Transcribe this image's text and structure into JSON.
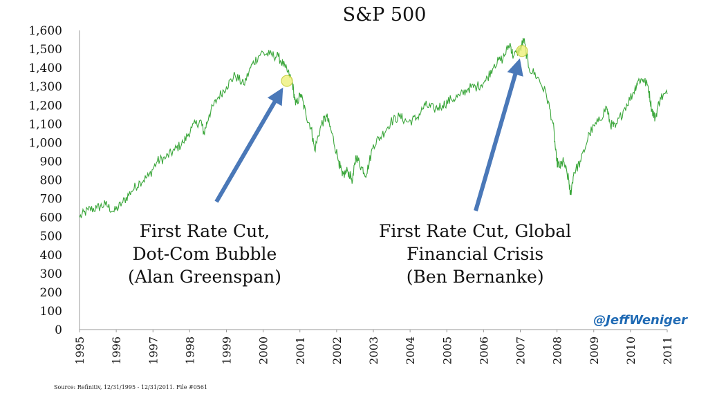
{
  "chart_data": {
    "type": "line",
    "title": "S&P 500",
    "xlabel": "",
    "ylabel": "",
    "xlim": [
      1995.0,
      2011.25
    ],
    "ylim": [
      0,
      1600
    ],
    "y_ticks": [
      0,
      100,
      200,
      300,
      400,
      500,
      600,
      700,
      800,
      900,
      1000,
      1100,
      1200,
      1300,
      1400,
      1500,
      1600
    ],
    "y_tick_labels": [
      "0",
      "100",
      "200",
      "300",
      "400",
      "500",
      "600",
      "700",
      "800",
      "900",
      "1,000",
      "1,100",
      "1,200",
      "1,300",
      "1,400",
      "1,500",
      "1,600"
    ],
    "x_tick_labels": [
      "1995",
      "1996",
      "1997",
      "1998",
      "1999",
      "2000",
      "2001",
      "2002",
      "2003",
      "2004",
      "2005",
      "2006",
      "2007",
      "2008",
      "2009",
      "2010",
      "2011"
    ],
    "grid": false,
    "line_color": "#3aa63a",
    "series": [
      {
        "values": [
          [
            1995.0,
            600
          ],
          [
            1995.25,
            640
          ],
          [
            1995.5,
            650
          ],
          [
            1995.75,
            670
          ],
          [
            1996.0,
            630
          ],
          [
            1996.25,
            680
          ],
          [
            1996.5,
            740
          ],
          [
            1996.75,
            790
          ],
          [
            1997.0,
            820
          ],
          [
            1997.25,
            900
          ],
          [
            1997.5,
            920
          ],
          [
            1997.75,
            960
          ],
          [
            1998.0,
            1000
          ],
          [
            1998.25,
            1080
          ],
          [
            1998.5,
            1120
          ],
          [
            1998.6,
            1050
          ],
          [
            1998.75,
            1150
          ],
          [
            1999.0,
            1240
          ],
          [
            1999.25,
            1300
          ],
          [
            1999.5,
            1360
          ],
          [
            1999.75,
            1310
          ],
          [
            2000.0,
            1420
          ],
          [
            2000.25,
            1480
          ],
          [
            2000.5,
            1470
          ],
          [
            2000.75,
            1460
          ],
          [
            2000.95,
            1400
          ],
          [
            2001.15,
            1330
          ],
          [
            2001.25,
            1200
          ],
          [
            2001.4,
            1260
          ],
          [
            2001.55,
            1150
          ],
          [
            2001.7,
            1080
          ],
          [
            2001.8,
            960
          ],
          [
            2002.0,
            1100
          ],
          [
            2002.15,
            1140
          ],
          [
            2002.3,
            1050
          ],
          [
            2002.5,
            900
          ],
          [
            2002.6,
            820
          ],
          [
            2002.75,
            850
          ],
          [
            2002.9,
            800
          ],
          [
            2003.0,
            930
          ],
          [
            2003.15,
            870
          ],
          [
            2003.3,
            830
          ],
          [
            2003.5,
            990
          ],
          [
            2003.75,
            1040
          ],
          [
            2004.0,
            1110
          ],
          [
            2004.25,
            1140
          ],
          [
            2004.5,
            1110
          ],
          [
            2004.75,
            1130
          ],
          [
            2005.0,
            1200
          ],
          [
            2005.25,
            1180
          ],
          [
            2005.5,
            1200
          ],
          [
            2005.75,
            1230
          ],
          [
            2006.0,
            1250
          ],
          [
            2006.25,
            1290
          ],
          [
            2006.5,
            1300
          ],
          [
            2006.75,
            1330
          ],
          [
            2007.0,
            1420
          ],
          [
            2007.25,
            1450
          ],
          [
            2007.45,
            1530
          ],
          [
            2007.55,
            1460
          ],
          [
            2007.75,
            1500
          ],
          [
            2007.85,
            1550
          ],
          [
            2008.0,
            1400
          ],
          [
            2008.25,
            1350
          ],
          [
            2008.5,
            1260
          ],
          [
            2008.7,
            1100
          ],
          [
            2008.8,
            900
          ],
          [
            2008.9,
            870
          ],
          [
            2009.0,
            900
          ],
          [
            2009.15,
            800
          ],
          [
            2009.2,
            720
          ],
          [
            2009.3,
            840
          ],
          [
            2009.5,
            900
          ],
          [
            2009.75,
            1050
          ],
          [
            2010.0,
            1110
          ],
          [
            2010.25,
            1190
          ],
          [
            2010.35,
            1100
          ],
          [
            2010.5,
            1080
          ],
          [
            2010.75,
            1180
          ],
          [
            2011.0,
            1260
          ],
          [
            2011.15,
            1330
          ],
          [
            2011.3,
            1340
          ],
          [
            2011.45,
            1300
          ],
          [
            2011.55,
            1180
          ],
          [
            2011.65,
            1130
          ],
          [
            2011.8,
            1240
          ],
          [
            2012.0,
            1260
          ]
        ]
      }
    ],
    "annotations": [
      {
        "lines": [
          "First Rate Cut,",
          "Dot-Com Bubble",
          "(Alan Greenspan)"
        ],
        "point": [
          2001.0,
          1330
        ]
      },
      {
        "lines": [
          "First Rate Cut, Global",
          "Financial Crisis",
          "(Ben Bernanke)"
        ],
        "point": [
          2007.8,
          1490
        ]
      }
    ]
  },
  "handle": "@JeffWeniger",
  "source": "Source: Refinitiv, 12/31/1995 - 12/31/2011. File #0561",
  "colors": {
    "line": "#3aa63a",
    "arrow": "#4a78b8",
    "highlight": "#eef07a",
    "handle": "#1f6ab4"
  }
}
